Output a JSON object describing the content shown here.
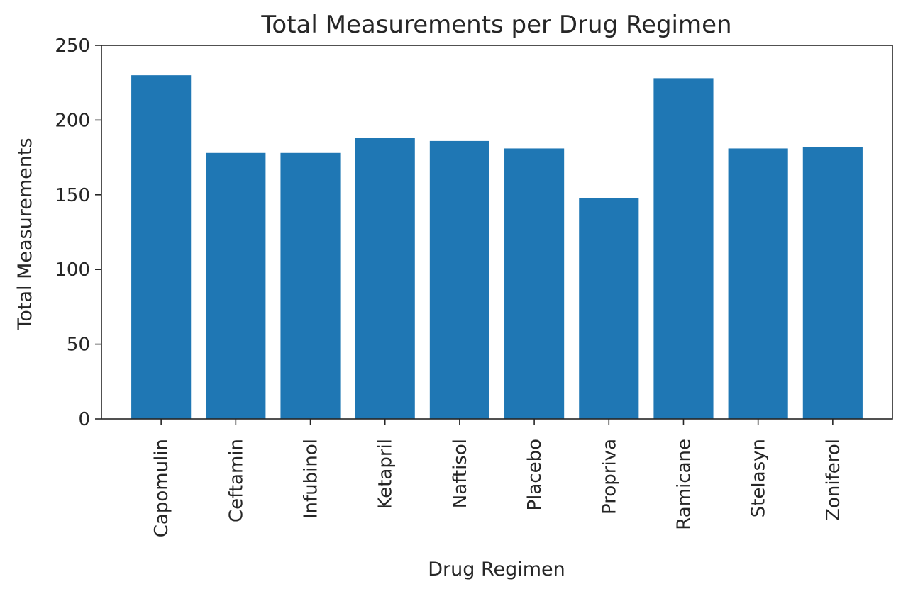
{
  "chart_data": {
    "type": "bar",
    "title": "Total Measurements per Drug Regimen",
    "xlabel": "Drug Regimen",
    "ylabel": "Total Measurements",
    "categories": [
      "Capomulin",
      "Ceftamin",
      "Infubinol",
      "Ketapril",
      "Naftisol",
      "Placebo",
      "Propriva",
      "Ramicane",
      "Stelasyn",
      "Zoniferol"
    ],
    "values": [
      230,
      178,
      178,
      188,
      186,
      181,
      148,
      228,
      181,
      182
    ],
    "ylim": [
      0,
      250
    ],
    "yticks": [
      0,
      50,
      100,
      150,
      200,
      250
    ],
    "ytick_labels": [
      "0",
      "50",
      "100",
      "150",
      "200",
      "250"
    ],
    "xtick_rotation": "vertical",
    "grid": false,
    "legend": "none",
    "colors": {
      "bar": "#1f77b4",
      "axis": "#262626",
      "background": "#ffffff"
    }
  }
}
